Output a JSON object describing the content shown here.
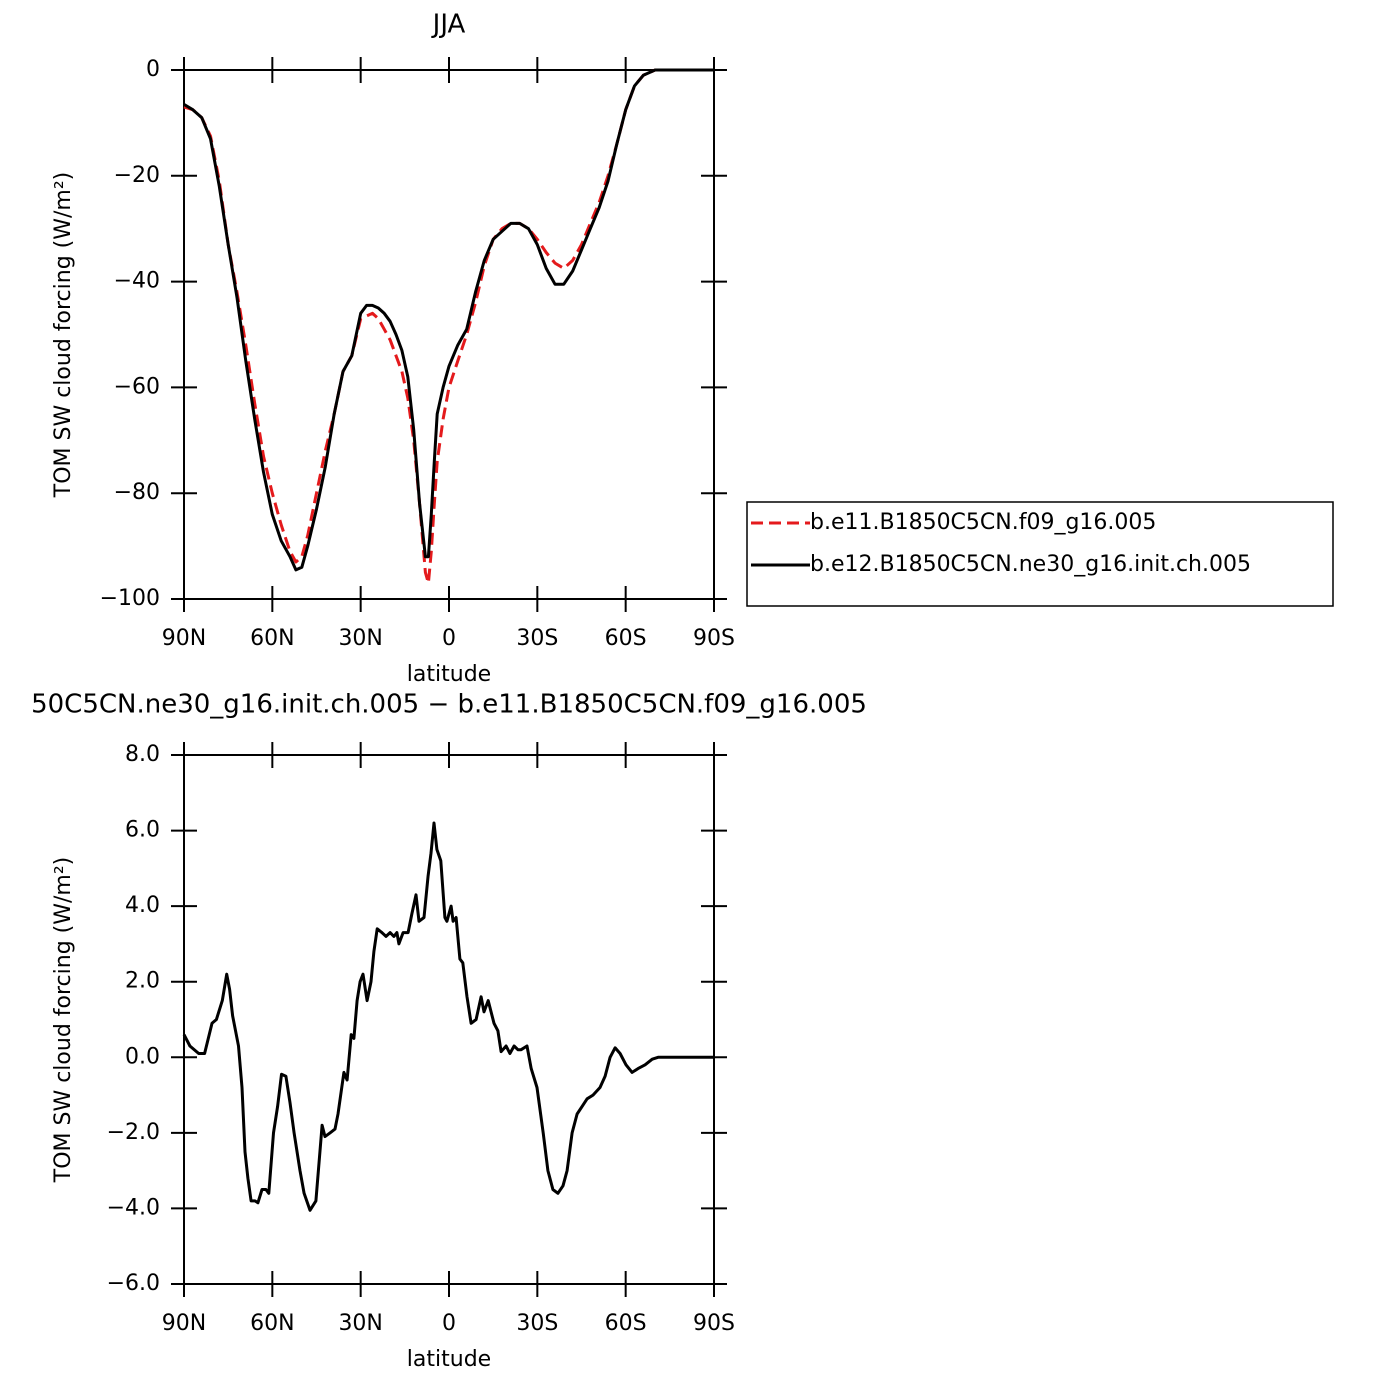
{
  "chart_data": [
    {
      "type": "line",
      "title": "JJA",
      "xlabel": "latitude",
      "ylabel": "TOM SW cloud forcing (W/m²)",
      "xlim": [
        90,
        -90
      ],
      "xticks": [
        {
          "value": 90,
          "label": "90N"
        },
        {
          "value": 60,
          "label": "60N"
        },
        {
          "value": 30,
          "label": "30N"
        },
        0,
        {
          "value": -30,
          "label": "30S"
        },
        {
          "value": -60,
          "label": "60S"
        },
        {
          "value": -90,
          "label": "90S"
        }
      ],
      "ylim": [
        -100,
        0
      ],
      "yticks": [
        0,
        {
          "value": -20,
          "label": "−20"
        },
        {
          "value": -40,
          "label": "−40"
        },
        {
          "value": -60,
          "label": "−60"
        },
        {
          "value": -80,
          "label": "−80"
        },
        {
          "value": -100,
          "label": "−100"
        }
      ],
      "legend": "right",
      "x": [
        90,
        87,
        84,
        81,
        78,
        75,
        72,
        69,
        66,
        63,
        60,
        57,
        54,
        52,
        50,
        48,
        45,
        42,
        39,
        36,
        33,
        30,
        28,
        26,
        24,
        22,
        20,
        18,
        16,
        14,
        12,
        10,
        8,
        7,
        6,
        5,
        4,
        2,
        0,
        -3,
        -6,
        -9,
        -12,
        -15,
        -18,
        -21,
        -24,
        -27,
        -30,
        -33,
        -36,
        -39,
        -42,
        -45,
        -48,
        -51,
        -54,
        -57,
        -60,
        -63,
        -66,
        -70,
        -75,
        -80,
        -90
      ],
      "series": [
        {
          "name": "b.e11.B1850C5CN.f09_g16.005",
          "color": "#e41a1c",
          "line_style": "dashed",
          "values": [
            -7,
            -7.5,
            -9,
            -12.5,
            -21,
            -33,
            -42,
            -52,
            -63,
            -73,
            -80,
            -86,
            -91,
            -93,
            -92,
            -88,
            -80,
            -72,
            -65,
            -57,
            -54,
            -47,
            -46.5,
            -46,
            -47,
            -49,
            -51,
            -54,
            -57,
            -62,
            -70,
            -82,
            -95,
            -97,
            -91,
            -82,
            -74,
            -66,
            -60,
            -55,
            -50,
            -44,
            -37,
            -32,
            -30,
            -29,
            -29,
            -30,
            -32,
            -34.5,
            -36.5,
            -37.5,
            -36,
            -33,
            -29,
            -25,
            -20,
            -14,
            -7.5,
            -3,
            -1,
            0,
            0,
            0,
            0
          ]
        },
        {
          "name": "b.e12.B1850C5CN.ne30_g16.init.ch.005",
          "color": "#000000",
          "line_style": "solid",
          "values": [
            -6.5,
            -7.5,
            -9,
            -13,
            -22,
            -33,
            -43,
            -55,
            -66,
            -76,
            -84,
            -89,
            -92,
            -94.5,
            -94,
            -90,
            -83,
            -75,
            -65,
            -57,
            -54,
            -46,
            -44.5,
            -44.5,
            -45,
            -46,
            -47.5,
            -50,
            -53,
            -58,
            -68,
            -82,
            -92,
            -92,
            -84,
            -74,
            -65,
            -60,
            -56,
            -52,
            -49,
            -42,
            -36,
            -32,
            -30.5,
            -29,
            -29,
            -30,
            -33,
            -37.5,
            -40.5,
            -40.5,
            -38,
            -34,
            -30,
            -26,
            -21,
            -14,
            -7.5,
            -3,
            -1,
            0,
            0,
            0,
            0
          ]
        }
      ]
    },
    {
      "type": "line",
      "title": "50C5CN.ne30_g16.init.ch.005 − b.e11.B1850C5CN.f09_g16.005",
      "xlabel": "latitude",
      "ylabel": "TOM SW cloud forcing (W/m²)",
      "xlim": [
        90,
        -90
      ],
      "xticks": [
        {
          "value": 90,
          "label": "90N"
        },
        {
          "value": 60,
          "label": "60N"
        },
        {
          "value": 30,
          "label": "30N"
        },
        0,
        {
          "value": -30,
          "label": "30S"
        },
        {
          "value": -60,
          "label": "60S"
        },
        {
          "value": -90,
          "label": "90S"
        }
      ],
      "ylim": [
        -6,
        8
      ],
      "yticks": [
        {
          "value": 8,
          "label": "8.0"
        },
        {
          "value": 6,
          "label": "6.0"
        },
        {
          "value": 4,
          "label": "4.0"
        },
        {
          "value": 2,
          "label": "2.0"
        },
        {
          "value": 0,
          "label": "0.0"
        },
        {
          "value": -2,
          "label": "−2.0"
        },
        {
          "value": -4,
          "label": "−4.0"
        },
        {
          "value": -6,
          "label": "−6.0"
        }
      ],
      "color": "#000000",
      "x": [
        90,
        88,
        85,
        83,
        80.5,
        79,
        77,
        75.5,
        74.5,
        73.5,
        71.5,
        70.3,
        69.3,
        68.3,
        67.2,
        65.9,
        64.9,
        63.5,
        62.2,
        61.2,
        59.6,
        58.2,
        56.9,
        55.4,
        54,
        52.6,
        50.6,
        49.2,
        47.2,
        45.2,
        43.1,
        42.1,
        40.4,
        38.7,
        37.7,
        35.7,
        34.6,
        33.2,
        32.3,
        31.2,
        30.2,
        29.2,
        27.8,
        26.5,
        25.5,
        24.4,
        22.8,
        21.4,
        20,
        18.7,
        17.7,
        17,
        15.6,
        13.9,
        12.6,
        11.2,
        10.2,
        8.5,
        7.1,
        6.1,
        5.1,
        4.1,
        2.8,
        1.4,
        0.7,
        -0.7,
        -1.4,
        -2.4,
        -3.7,
        -4.7,
        -6.1,
        -7.5,
        -9.2,
        -10.9,
        -11.9,
        -13.3,
        -15.3,
        -16.6,
        -17.7,
        -19.4,
        -20.7,
        -22.1,
        -23.4,
        -24.5,
        -26.5,
        -27.9,
        -29.9,
        -32,
        -33.6,
        -35.3,
        -37,
        -38.7,
        -40.1,
        -41.8,
        -43.5,
        -45.2,
        -46.9,
        -48.9,
        -51.3,
        -53,
        -54.7,
        -56.4,
        -58.1,
        -60.1,
        -62.2,
        -64.2,
        -66.6,
        -69,
        -71,
        -90
      ],
      "values": [
        0.6,
        0.3,
        0.1,
        0.1,
        0.9,
        1,
        1.5,
        2.2,
        1.8,
        1.1,
        0.3,
        -0.8,
        -2.5,
        -3.2,
        -3.8,
        -3.8,
        -3.85,
        -3.5,
        -3.5,
        -3.6,
        -2,
        -1.3,
        -0.45,
        -0.5,
        -1.2,
        -2,
        -3,
        -3.6,
        -4.05,
        -3.8,
        -1.8,
        -2.1,
        -2,
        -1.9,
        -1.5,
        -0.4,
        -0.6,
        0.6,
        0.5,
        1.5,
        2,
        2.2,
        1.5,
        2,
        2.8,
        3.4,
        3.3,
        3.2,
        3.3,
        3.2,
        3.3,
        3,
        3.3,
        3.3,
        3.8,
        4.3,
        3.6,
        3.7,
        4.8,
        5.4,
        6.2,
        5.5,
        5.2,
        3.7,
        3.6,
        4,
        3.6,
        3.7,
        2.6,
        2.5,
        1.6,
        0.9,
        1,
        1.6,
        1.2,
        1.5,
        0.9,
        0.7,
        0.15,
        0.3,
        0.1,
        0.3,
        0.2,
        0.2,
        0.3,
        -0.3,
        -0.8,
        -2,
        -3,
        -3.5,
        -3.6,
        -3.4,
        -3,
        -2,
        -1.5,
        -1.3,
        -1.1,
        -1,
        -0.8,
        -0.5,
        0,
        0.25,
        0.1,
        -0.2,
        -0.4,
        -0.3,
        -0.2,
        -0.05,
        0,
        0
      ]
    }
  ]
}
